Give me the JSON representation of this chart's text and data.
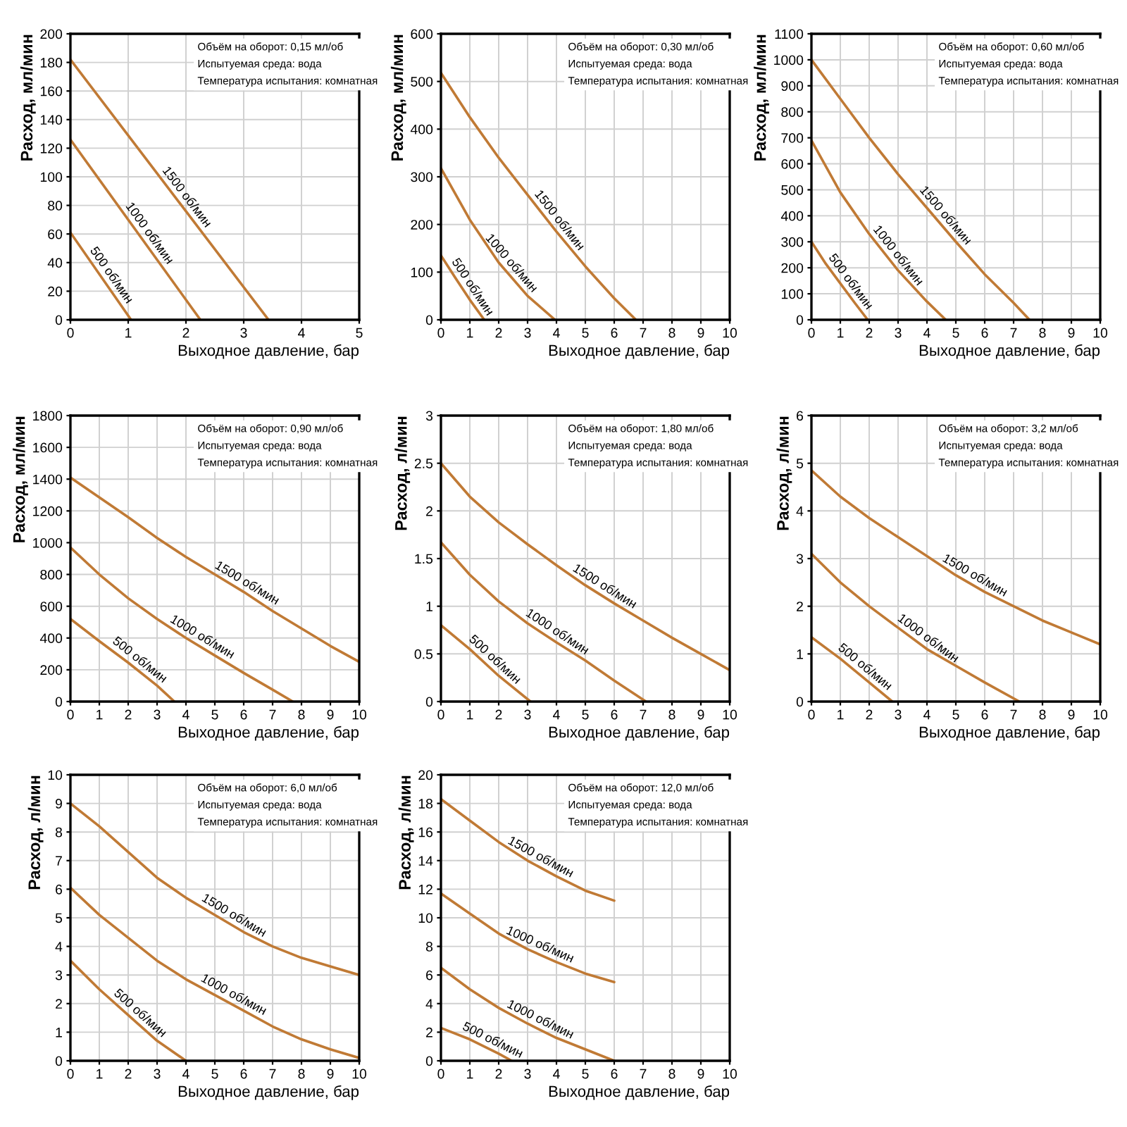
{
  "chart_data": [
    {
      "type": "line",
      "xlabel": "Выходное давление, бар",
      "ylabel": "Расход, мл/мин",
      "xlim": [
        0,
        5
      ],
      "ylim": [
        0,
        200
      ],
      "xticks": [
        0,
        1,
        2,
        3,
        4,
        5
      ],
      "yticks": [
        0,
        20,
        40,
        60,
        80,
        100,
        120,
        140,
        160,
        180,
        200
      ],
      "grid": true,
      "annotations": [
        "Объём на оборот: 0,15 мл/об",
        "Испытуемая среда: вода",
        "Температура испытания: комнатная"
      ],
      "series": [
        {
          "name": "500 об/мин",
          "color": "#c07a35",
          "x": [
            0,
            1.05
          ],
          "values": [
            61,
            0
          ]
        },
        {
          "name": "1000 об/мин",
          "color": "#c07a35",
          "x": [
            0,
            2.25
          ],
          "values": [
            126,
            0
          ]
        },
        {
          "name": "1500 об/мин",
          "color": "#c07a35",
          "x": [
            0,
            3.43
          ],
          "values": [
            182,
            0
          ]
        }
      ]
    },
    {
      "type": "line",
      "xlabel": "Выходное давление, бар",
      "ylabel": "Расход, мл/мин",
      "xlim": [
        0,
        10
      ],
      "ylim": [
        0,
        600
      ],
      "xticks": [
        0,
        1,
        2,
        3,
        4,
        5,
        6,
        7,
        8,
        9,
        10
      ],
      "yticks": [
        0,
        100,
        200,
        300,
        400,
        500,
        600
      ],
      "grid": true,
      "annotations": [
        "Объём на оборот: 0,30 мл/об",
        "Испытуемая среда: вода",
        "Температура испытания: комнатная"
      ],
      "series": [
        {
          "name": "500 об/мин",
          "color": "#c07a35",
          "x": [
            0,
            0.5,
            1,
            1.5
          ],
          "values": [
            135,
            88,
            42,
            0
          ]
        },
        {
          "name": "1000 об/мин",
          "color": "#c07a35",
          "x": [
            0,
            1,
            2,
            3,
            3.95
          ],
          "values": [
            318,
            210,
            120,
            50,
            0
          ]
        },
        {
          "name": "1500 об/мин",
          "color": "#c07a35",
          "x": [
            0,
            1,
            2,
            3,
            4,
            5,
            6,
            6.75
          ],
          "values": [
            518,
            425,
            340,
            262,
            185,
            112,
            45,
            0
          ]
        }
      ]
    },
    {
      "type": "line",
      "xlabel": "Выходное давление, бар",
      "ylabel": "Расход, мл/мин",
      "xlim": [
        0,
        10
      ],
      "ylim": [
        0,
        1100
      ],
      "xticks": [
        0,
        1,
        2,
        3,
        4,
        5,
        6,
        7,
        8,
        9,
        10
      ],
      "yticks": [
        0,
        100,
        200,
        300,
        400,
        500,
        600,
        700,
        800,
        900,
        1000,
        1100
      ],
      "grid": true,
      "annotations": [
        "Объём на оборот: 0,60 мл/об",
        "Испытуемая среда: вода",
        "Температура испытания: комнатная"
      ],
      "series": [
        {
          "name": "500 об/мин",
          "color": "#c07a35",
          "x": [
            0,
            0.5,
            1,
            1.5,
            1.95
          ],
          "values": [
            300,
            215,
            140,
            65,
            0
          ]
        },
        {
          "name": "1000 об/мин",
          "color": "#c07a35",
          "x": [
            0,
            1,
            2,
            3,
            4,
            4.65
          ],
          "values": [
            690,
            490,
            330,
            190,
            70,
            0
          ]
        },
        {
          "name": "1500 об/мин",
          "color": "#c07a35",
          "x": [
            0,
            1,
            2,
            3,
            4,
            5,
            6,
            7,
            7.55
          ],
          "values": [
            1000,
            850,
            700,
            560,
            430,
            300,
            175,
            65,
            0
          ]
        }
      ]
    },
    {
      "type": "line",
      "xlabel": "Выходное давление, бар",
      "ylabel": "Расход, мл/мин",
      "xlim": [
        0,
        10
      ],
      "ylim": [
        0,
        1800
      ],
      "xticks": [
        0,
        1,
        2,
        3,
        4,
        5,
        6,
        7,
        8,
        9,
        10
      ],
      "yticks": [
        0,
        200,
        400,
        600,
        800,
        1000,
        1200,
        1400,
        1600,
        1800
      ],
      "grid": true,
      "annotations": [
        "Объём на оборот: 0,90 мл/об",
        "Испытуемая среда: вода",
        "Температура испытания: комнатная"
      ],
      "series": [
        {
          "name": "500 об/мин",
          "color": "#c07a35",
          "x": [
            0,
            1,
            2,
            3,
            3.6
          ],
          "values": [
            520,
            380,
            245,
            100,
            0
          ]
        },
        {
          "name": "1000 об/мин",
          "color": "#c07a35",
          "x": [
            0,
            1,
            2,
            3,
            4,
            5,
            6,
            7,
            7.7
          ],
          "values": [
            970,
            800,
            650,
            520,
            400,
            290,
            180,
            75,
            0
          ]
        },
        {
          "name": "1500 об/мин",
          "color": "#c07a35",
          "x": [
            0,
            2,
            3,
            4,
            5,
            6,
            7,
            8,
            9,
            10
          ],
          "values": [
            1410,
            1160,
            1030,
            910,
            800,
            690,
            570,
            460,
            350,
            250
          ]
        }
      ]
    },
    {
      "type": "line",
      "xlabel": "Выходное давление, бар",
      "ylabel": "Расход, л/мин",
      "xlim": [
        0,
        10
      ],
      "ylim": [
        0,
        3
      ],
      "xticks": [
        0,
        1,
        2,
        3,
        4,
        5,
        6,
        7,
        8,
        9,
        10
      ],
      "yticks": [
        0,
        0.5,
        1,
        1.5,
        2,
        2.5,
        3
      ],
      "grid": true,
      "annotations": [
        "Объём на оборот: 1,80 мл/об",
        "Испытуемая среда: вода",
        "Температура испытания: комнатная"
      ],
      "series": [
        {
          "name": "500 об/мин",
          "color": "#c07a35",
          "x": [
            0,
            1,
            2,
            3.1
          ],
          "values": [
            0.8,
            0.55,
            0.27,
            0
          ]
        },
        {
          "name": "1000 об/мин",
          "color": "#c07a35",
          "x": [
            0,
            1,
            2,
            3,
            4,
            5,
            6,
            7.1
          ],
          "values": [
            1.67,
            1.33,
            1.05,
            0.82,
            0.62,
            0.43,
            0.22,
            0
          ]
        },
        {
          "name": "1500 об/мин",
          "color": "#c07a35",
          "x": [
            0,
            1,
            2,
            3,
            4,
            5,
            6,
            7,
            8,
            9,
            10
          ],
          "values": [
            2.5,
            2.15,
            1.88,
            1.65,
            1.43,
            1.22,
            1.03,
            0.85,
            0.67,
            0.5,
            0.33
          ]
        }
      ]
    },
    {
      "type": "line",
      "xlabel": "Выходное давление, бар",
      "ylabel": "Расход, л/мин",
      "xlim": [
        0,
        10
      ],
      "ylim": [
        0,
        6
      ],
      "xticks": [
        0,
        1,
        2,
        3,
        4,
        5,
        6,
        7,
        8,
        9,
        10
      ],
      "yticks": [
        0,
        1,
        2,
        3,
        4,
        5,
        6
      ],
      "grid": true,
      "annotations": [
        "Объём на оборот: 3,2 мл/об",
        "Испытуемая среда: вода",
        "Температура испытания: комнатная"
      ],
      "series": [
        {
          "name": "500 об/мин",
          "color": "#c07a35",
          "x": [
            0,
            1,
            2,
            2.8
          ],
          "values": [
            1.35,
            0.9,
            0.4,
            0
          ]
        },
        {
          "name": "1000 об/мин",
          "color": "#c07a35",
          "x": [
            0,
            1,
            2,
            3,
            4,
            5,
            6,
            7.2
          ],
          "values": [
            3.1,
            2.5,
            2.0,
            1.55,
            1.1,
            0.75,
            0.4,
            0
          ]
        },
        {
          "name": "1500 об/мин",
          "color": "#c07a35",
          "x": [
            0,
            1,
            2,
            3,
            4,
            5,
            6,
            7,
            8,
            9,
            10
          ],
          "values": [
            4.85,
            4.3,
            3.85,
            3.45,
            3.05,
            2.65,
            2.3,
            2.0,
            1.7,
            1.45,
            1.2
          ]
        }
      ]
    },
    {
      "type": "line",
      "xlabel": "Выходное давление, бар",
      "ylabel": "Расход, л/мин",
      "xlim": [
        0,
        10
      ],
      "ylim": [
        0,
        10
      ],
      "xticks": [
        0,
        1,
        2,
        3,
        4,
        5,
        6,
        7,
        8,
        9,
        10
      ],
      "yticks": [
        0,
        1,
        2,
        3,
        4,
        5,
        6,
        7,
        8,
        9,
        10
      ],
      "grid": true,
      "annotations": [
        "Объём на оборот: 6,0 мл/об",
        "Испытуемая среда: вода",
        "Температура испытания: комнатная"
      ],
      "series": [
        {
          "name": "500 об/мин",
          "color": "#c07a35",
          "x": [
            0,
            1,
            2,
            3,
            4
          ],
          "values": [
            3.5,
            2.5,
            1.6,
            0.7,
            0
          ]
        },
        {
          "name": "1000 об/мин",
          "color": "#c07a35",
          "x": [
            0,
            1,
            2,
            3,
            4,
            5,
            6,
            7,
            8,
            9,
            10
          ],
          "values": [
            6.05,
            5.1,
            4.3,
            3.5,
            2.85,
            2.3,
            1.75,
            1.2,
            0.75,
            0.4,
            0.1
          ]
        },
        {
          "name": "1500 об/мин",
          "color": "#c07a35",
          "x": [
            0,
            1,
            2,
            3,
            4,
            5,
            6,
            7,
            8,
            9,
            10
          ],
          "values": [
            9,
            8.2,
            7.3,
            6.4,
            5.7,
            5.1,
            4.5,
            4.0,
            3.6,
            3.3,
            3.0
          ]
        }
      ]
    },
    {
      "type": "line",
      "xlabel": "Выходное давление, бар",
      "ylabel": "Расход, л/мин",
      "xlim": [
        0,
        10
      ],
      "ylim": [
        0,
        20
      ],
      "xticks": [
        0,
        1,
        2,
        3,
        4,
        5,
        6,
        7,
        8,
        9,
        10
      ],
      "yticks": [
        0,
        2,
        4,
        6,
        8,
        10,
        12,
        14,
        16,
        18,
        20
      ],
      "grid": true,
      "annotations": [
        "Объём на оборот: 12,0 мл/об",
        "Испытуемая среда: вода",
        "Температура испытания: комнатная"
      ],
      "series": [
        {
          "name": "500 об/мин",
          "color": "#c07a35",
          "x": [
            0,
            1,
            2,
            2.45
          ],
          "values": [
            2.3,
            1.5,
            0.5,
            0
          ]
        },
        {
          "name": "1000 об/мин",
          "color": "#c07a35",
          "x": [
            0,
            1,
            2,
            3,
            4,
            5,
            6
          ],
          "values": [
            6.5,
            5.0,
            3.7,
            2.6,
            1.6,
            0.8,
            0
          ]
        },
        {
          "name": "1000 об/мин",
          "color": "#c07a35",
          "x": [
            0,
            1,
            2,
            3,
            4,
            5,
            6
          ],
          "values": [
            11.7,
            10.3,
            8.9,
            7.8,
            6.9,
            6.1,
            5.5
          ]
        },
        {
          "name": "1500 об/мин",
          "color": "#c07a35",
          "x": [
            0,
            1,
            2,
            3,
            4,
            5,
            6
          ],
          "values": [
            18.3,
            16.8,
            15.3,
            14.0,
            12.9,
            11.9,
            11.2
          ]
        }
      ]
    }
  ]
}
